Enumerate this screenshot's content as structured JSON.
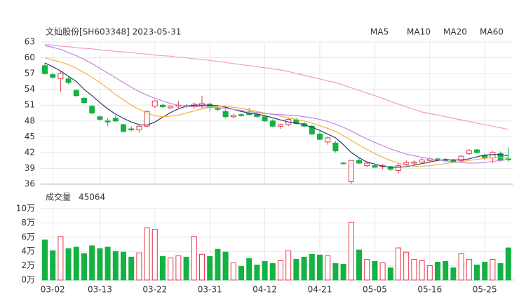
{
  "chart_data": [
    {
      "type": "candlestick",
      "title": "文灿股份[SH603348] 2023-05-31",
      "categories": [
        null,
        "03-02",
        null,
        null,
        null,
        null,
        null,
        "03-13",
        null,
        null,
        null,
        null,
        null,
        null,
        "03-22",
        null,
        null,
        null,
        null,
        null,
        null,
        "03-31",
        null,
        null,
        null,
        null,
        null,
        null,
        "04-12",
        null,
        null,
        null,
        null,
        null,
        null,
        "04-21",
        null,
        null,
        null,
        null,
        null,
        null,
        "05-05",
        null,
        null,
        null,
        null,
        null,
        null,
        "05-16",
        null,
        null,
        null,
        null,
        null,
        null,
        "05-25",
        null,
        null,
        null
      ],
      "open": [
        58.5,
        56.8,
        56.0,
        56.0,
        53.8,
        52.3,
        50.8,
        48.8,
        48.0,
        48.5,
        47.3,
        46.5,
        46.3,
        47.0,
        50.8,
        51.0,
        50.5,
        50.8,
        50.9,
        50.8,
        51.0,
        51.2,
        50.5,
        49.8,
        48.8,
        49.2,
        49.5,
        49.3,
        48.8,
        48.0,
        47.0,
        47.3,
        48.2,
        47.5,
        47.0,
        45.5,
        44.0,
        43.8,
        40.0,
        36.5,
        40.5,
        39.5,
        39.5,
        39.3,
        39.3,
        38.6,
        39.8,
        40.0,
        40.2,
        40.5,
        40.8,
        40.7,
        40.5,
        40.5,
        41.8,
        42.5,
        41.5,
        41.0,
        41.8,
        40.8
      ],
      "high": [
        59.0,
        57.2,
        57.5,
        56.5,
        54.0,
        52.5,
        51.0,
        49.0,
        48.5,
        49.0,
        47.5,
        47.0,
        47.3,
        50.0,
        52.0,
        51.3,
        51.0,
        51.8,
        51.2,
        51.5,
        52.8,
        51.5,
        51.0,
        50.2,
        49.4,
        49.5,
        50.5,
        49.8,
        49.0,
        48.3,
        47.5,
        48.6,
        48.5,
        47.8,
        47.3,
        46.0,
        45.0,
        44.2,
        40.2,
        40.5,
        41.0,
        40.3,
        39.8,
        39.8,
        39.5,
        40.0,
        40.5,
        40.5,
        41.0,
        41.0,
        41.0,
        41.0,
        40.8,
        41.5,
        42.7,
        42.7,
        41.8,
        42.3,
        42.2,
        43.0
      ],
      "low": [
        56.8,
        56.0,
        53.5,
        55.0,
        52.5,
        51.3,
        49.3,
        48.0,
        47.0,
        47.8,
        45.8,
        46.0,
        45.8,
        46.8,
        50.5,
        50.5,
        50.3,
        50.5,
        50.5,
        50.3,
        50.3,
        49.8,
        49.8,
        48.5,
        48.5,
        48.8,
        49.0,
        48.7,
        47.8,
        46.8,
        46.5,
        47.0,
        47.3,
        46.8,
        45.3,
        44.3,
        43.5,
        42.0,
        39.8,
        36.0,
        39.8,
        39.2,
        39.0,
        38.8,
        38.5,
        38.0,
        39.5,
        39.5,
        40.0,
        40.2,
        40.3,
        40.2,
        40.0,
        40.2,
        41.5,
        41.8,
        40.5,
        40.0,
        40.3,
        40.2
      ],
      "close": [
        57.0,
        56.3,
        57.0,
        55.3,
        52.8,
        51.5,
        49.5,
        48.3,
        47.8,
        48.0,
        46.0,
        46.3,
        47.0,
        49.8,
        51.8,
        50.7,
        50.8,
        51.0,
        50.8,
        51.2,
        51.3,
        50.8,
        50.2,
        48.8,
        49.1,
        49.0,
        49.2,
        48.8,
        48.0,
        47.0,
        47.3,
        48.3,
        47.5,
        47.0,
        45.5,
        44.5,
        44.8,
        42.3,
        39.9,
        40.5,
        40.0,
        40.0,
        39.2,
        39.5,
        38.8,
        39.5,
        40.1,
        40.2,
        40.6,
        40.8,
        40.5,
        40.5,
        40.2,
        41.3,
        42.4,
        42.0,
        41.0,
        42.0,
        40.5,
        40.6
      ],
      "up_color": "#e8394a",
      "down_color": "#14b143",
      "series": [
        {
          "name": "MA5",
          "color": "#2e3a6e",
          "values": [
            59,
            58.3,
            57.5,
            56.5,
            55.5,
            54,
            52.8,
            51.5,
            50.3,
            49.3,
            48.5,
            47.8,
            47.3,
            47.2,
            47.8,
            48.7,
            49.6,
            50.3,
            50.8,
            51,
            51,
            51,
            50.9,
            50.6,
            50.2,
            49.8,
            49.5,
            49.3,
            49,
            48.6,
            48.2,
            47.8,
            47.6,
            47.3,
            46.8,
            46.2,
            45.5,
            44.8,
            43.5,
            42,
            41,
            40.2,
            39.8,
            39.4,
            39.2,
            39.2,
            39.3,
            39.6,
            39.9,
            40.2,
            40.5,
            40.6,
            40.6,
            40.6,
            40.8,
            41.2,
            41.5,
            41.6,
            41.6,
            41.4
          ]
        },
        {
          "name": "MA10",
          "color": "#f5b041",
          "values": [
            60,
            59.6,
            59.2,
            58.7,
            58,
            57.2,
            56.3,
            55.3,
            54.2,
            53,
            52,
            51,
            50.2,
            49.5,
            49,
            48.8,
            48.9,
            49.1,
            49.5,
            49.9,
            50.3,
            50.6,
            50.8,
            50.8,
            50.6,
            50.4,
            50.1,
            49.8,
            49.5,
            49.2,
            48.9,
            48.6,
            48.3,
            48,
            47.6,
            47.1,
            46.6,
            46,
            45.2,
            44.3,
            43.4,
            42.6,
            41.8,
            41.1,
            40.5,
            40,
            39.6,
            39.4,
            39.4,
            39.5,
            39.7,
            39.9,
            40.1,
            40.3,
            40.5,
            40.7,
            40.9,
            41,
            41,
            41
          ]
        },
        {
          "name": "MA20",
          "color": "#c586e6",
          "values": [
            62.3,
            62,
            61.6,
            61,
            60.4,
            59.7,
            58.9,
            58,
            57.1,
            56.2,
            55.3,
            54.4,
            53.6,
            52.9,
            52.3,
            51.8,
            51.3,
            51,
            50.8,
            50.7,
            50.7,
            50.6,
            50.5,
            50.4,
            50.2,
            50,
            49.8,
            49.6,
            49.4,
            49.3,
            49.2,
            49.1,
            49,
            48.8,
            48.6,
            48.3,
            47.9,
            47.4,
            46.8,
            46.1,
            45.3,
            44.6,
            43.9,
            43.3,
            42.7,
            42.2,
            41.7,
            41.4,
            41.1,
            40.8,
            40.6,
            40.4,
            40.2,
            40.1,
            40,
            40,
            40.1,
            40.3,
            40.5,
            40.7
          ]
        },
        {
          "name": "MA60",
          "color": "#f39ac7",
          "values": [
            62.5,
            62.4,
            62.2,
            62.1,
            61.9,
            61.8,
            61.7,
            61.5,
            61.4,
            61.2,
            61.1,
            61.0,
            60.8,
            60.7,
            60.5,
            60.4,
            60.3,
            60.1,
            60.0,
            59.8,
            59.7,
            59.5,
            59.3,
            59.1,
            58.9,
            58.7,
            58.5,
            58.3,
            58.1,
            57.9,
            57.7,
            57.4,
            57.0,
            56.7,
            56.3,
            56.0,
            55.6,
            55.3,
            54.8,
            54.3,
            53.8,
            53.3,
            52.8,
            52.3,
            51.7,
            51.2,
            50.7,
            50.2,
            49.7,
            49.4,
            49.1,
            48.8,
            48.5,
            48.2,
            47.9,
            47.6,
            47.3,
            47.0,
            46.7,
            46.4
          ]
        }
      ],
      "ylim": [
        36,
        63
      ],
      "yticks": [
        36,
        39,
        42,
        45,
        48,
        51,
        54,
        57,
        60,
        63
      ],
      "grid": true
    },
    {
      "type": "bar",
      "title": "成交量",
      "last_value": 45064,
      "values": [
        5.6,
        4.1,
        6.1,
        4.4,
        4.6,
        3.7,
        4.8,
        4.4,
        4.6,
        4.0,
        3.9,
        3.2,
        3.8,
        7.3,
        7.1,
        3.3,
        3.1,
        3.4,
        3.2,
        6.1,
        3.6,
        3.3,
        4.3,
        3.9,
        2.4,
        1.9,
        3.0,
        2.1,
        2.6,
        2.3,
        2.7,
        4.1,
        2.9,
        3.2,
        3.6,
        3.5,
        3.4,
        2.3,
        2.2,
        8.1,
        4.2,
        2.9,
        2.6,
        2.4,
        1.7,
        4.5,
        3.9,
        2.9,
        2.7,
        2.0,
        2.5,
        2.6,
        1.7,
        3.7,
        2.9,
        2.1,
        2.5,
        2.9,
        2.3,
        4.5
      ],
      "ylim": [
        0,
        10
      ],
      "yticks": [
        {
          "value": 0,
          "label": "0万"
        },
        {
          "value": 2,
          "label": "2万"
        },
        {
          "value": 4,
          "label": "4万"
        },
        {
          "value": 6,
          "label": "6万"
        },
        {
          "value": 8,
          "label": "8万"
        },
        {
          "value": 10,
          "label": "10万"
        }
      ],
      "grid": true
    }
  ]
}
